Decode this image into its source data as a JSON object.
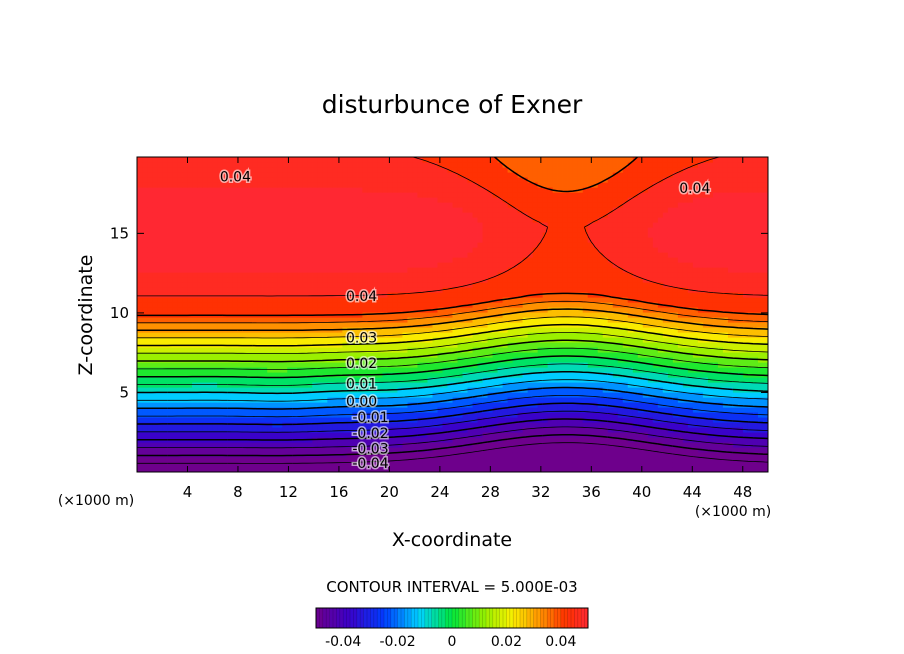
{
  "chart_data": {
    "type": "contour",
    "title": "disturbunce of Exner",
    "xlabel": "X-coordinate",
    "ylabel": "Z-coordinate",
    "x_unit": "(×1000 m)",
    "y_unit": "(×1000 m)",
    "xlim": [
      0,
      50
    ],
    "ylim": [
      0,
      19.8
    ],
    "x_ticks": [
      4,
      8,
      12,
      16,
      20,
      24,
      28,
      32,
      36,
      40,
      44,
      48
    ],
    "y_ticks": [
      5,
      10,
      15
    ],
    "contour_interval_text": "CONTOUR INTERVAL = 5.000E-03",
    "contour_labels": [
      {
        "text": "0.04",
        "x": 7.8,
        "z": 18.5
      },
      {
        "text": "0.04",
        "x": 44.2,
        "z": 17.8
      },
      {
        "text": "0.04",
        "x": 17.8,
        "z": 11.0
      },
      {
        "text": "0.03",
        "x": 17.8,
        "z": 8.4
      },
      {
        "text": "0.02",
        "x": 17.8,
        "z": 6.8
      },
      {
        "text": "0.01",
        "x": 17.8,
        "z": 5.5
      },
      {
        "text": "0.00",
        "x": 17.8,
        "z": 4.4
      },
      {
        "text": "-0.01",
        "x": 18.5,
        "z": 3.4
      },
      {
        "text": "-0.02",
        "x": 18.5,
        "z": 2.4
      },
      {
        "text": "-0.03",
        "x": 18.5,
        "z": 1.4
      },
      {
        "text": "-0.04",
        "x": 18.5,
        "z": 0.5
      }
    ],
    "colorbar": {
      "min": -0.05,
      "max": 0.05,
      "ticks": [
        "-0.04",
        "-0.02",
        "0",
        "0.02",
        "0.04"
      ],
      "tick_values": [
        -0.04,
        -0.02,
        0,
        0.02,
        0.04
      ]
    }
  }
}
